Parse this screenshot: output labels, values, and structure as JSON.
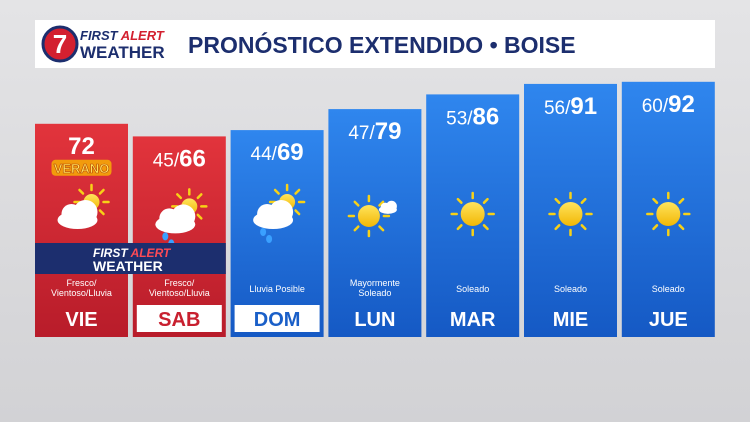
{
  "header": {
    "logo": {
      "number": "7",
      "line1": "FIRST",
      "line2": "ALERT",
      "line3": "WEATHER"
    },
    "title": "PRONÓSTICO EXTENDIDO • BOISE"
  },
  "separator": "/",
  "badge": "VERANO",
  "banner": {
    "line1": "FIRST",
    "line2": "ALERT",
    "line3": "WEATHER"
  },
  "days": [
    {
      "day": "VIE",
      "high": 72,
      "desc": [
        "Fresco/",
        "Vientoso/Lluvia"
      ],
      "theme": "red",
      "icon": "cloud-sun"
    },
    {
      "day": "SAB",
      "low": 45,
      "high": 66,
      "desc": [
        "Fresco/",
        "Vientoso/Lluvia"
      ],
      "theme": "red",
      "icon": "cloud-sun-rain"
    },
    {
      "day": "DOM",
      "low": 44,
      "high": 69,
      "desc": [
        "Lluvia Posible"
      ],
      "theme": "blue",
      "icon": "cloud-sun-rain"
    },
    {
      "day": "LUN",
      "low": 47,
      "high": 79,
      "desc": [
        "Mayormente",
        "Soleado"
      ],
      "theme": "blue",
      "icon": "sun-cloud"
    },
    {
      "day": "MAR",
      "low": 53,
      "high": 86,
      "desc": [
        "Soleado"
      ],
      "theme": "blue",
      "icon": "sun"
    },
    {
      "day": "MIE",
      "low": 56,
      "high": 91,
      "desc": [
        "Soleado"
      ],
      "theme": "blue",
      "icon": "sun"
    },
    {
      "day": "JUE",
      "low": 60,
      "high": 92,
      "desc": [
        "Soleado"
      ],
      "theme": "blue",
      "icon": "sun"
    }
  ]
}
